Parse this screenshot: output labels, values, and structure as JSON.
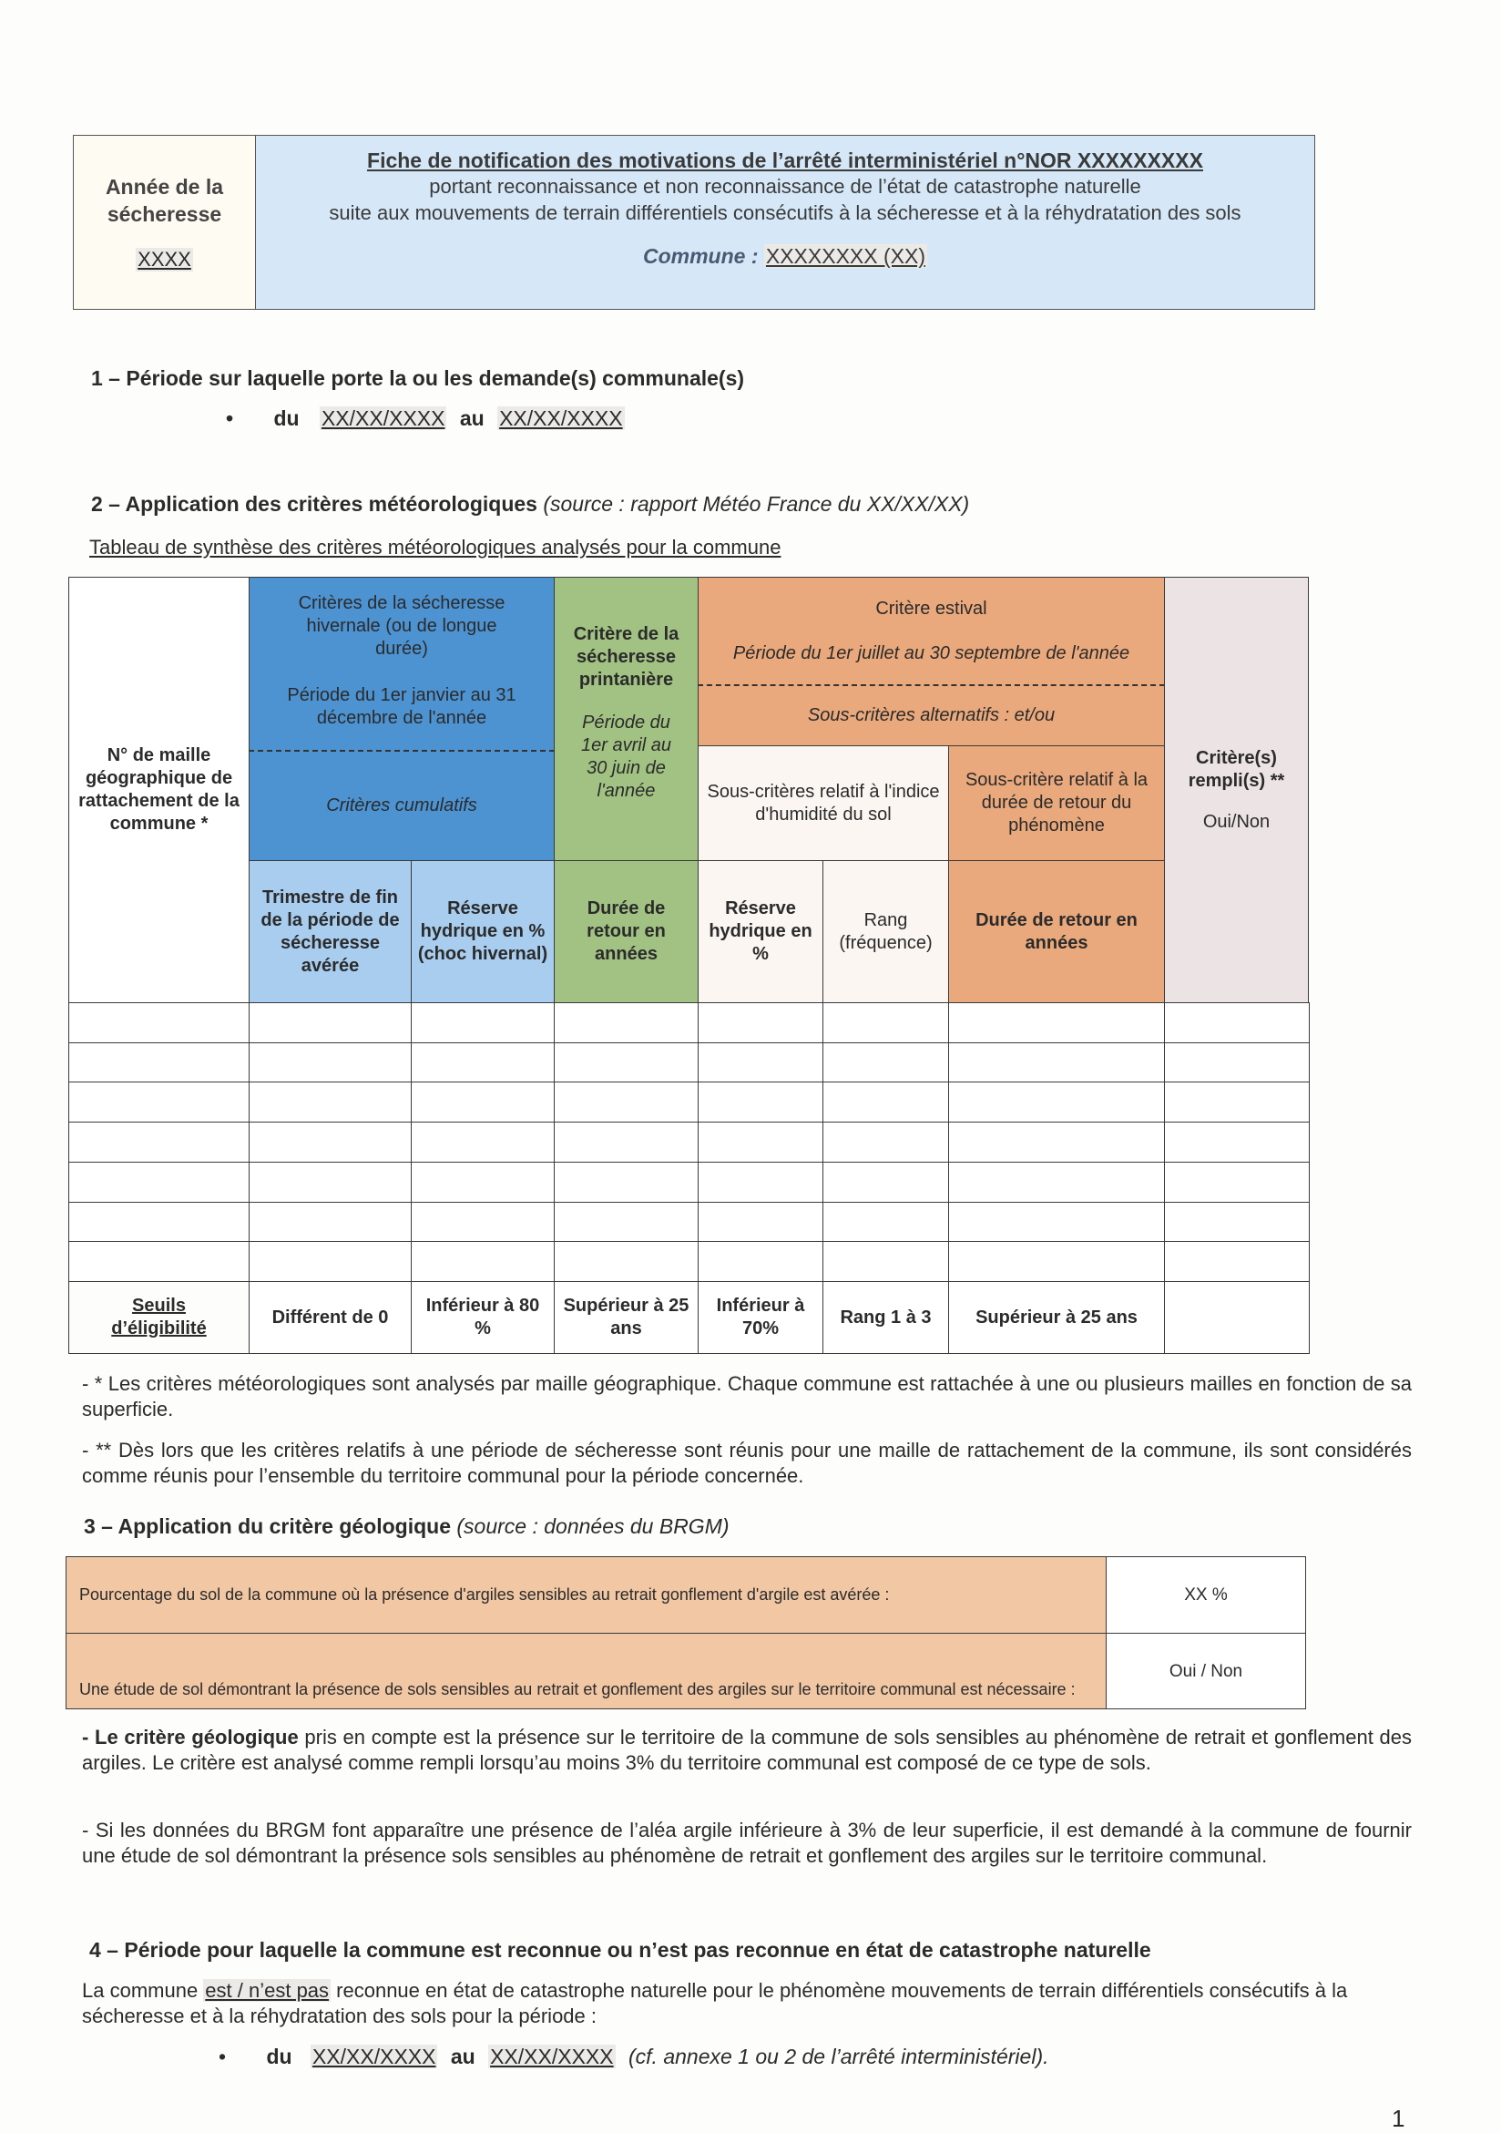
{
  "header": {
    "year_label": "Année de la sécheresse",
    "year_value": "XXXX",
    "title": "Fiche de notification des motivations de l’arrêté interministériel n°NOR XXXXXXXXX",
    "subtitle_1": "portant reconnaissance et non reconnaissance de l’état de catastrophe naturelle",
    "subtitle_2": "suite aux mouvements de terrain différentiels consécutifs à la sécheresse et à la réhydratation des sols",
    "commune_label": "Commune :",
    "commune_value": "XXXXXXXX (XX)"
  },
  "section1": {
    "heading": "1 – Période sur laquelle porte la ou les demande(s) communale(s)",
    "du": "du",
    "date_from": "XX/XX/XXXX",
    "au": "au",
    "date_to": "XX/XX/XXXX"
  },
  "section2": {
    "heading": "2 – Application des critères météorologiques",
    "source": "(source : rapport Météo France du XX/XX/XX)",
    "table_title": "Tableau de synthèse des critères météorologiques analysés pour la commune",
    "table": {
      "maille": "N° de maille géographique de rattachement de la commune *",
      "hivernale_title": "Critères de la sécheresse hivernale (ou de longue durée)",
      "hivernale_period": "Période du 1er janvier au 31 décembre de l'année",
      "hivernale_cumul": "Critères cumulatifs",
      "printaniere_title": "Critère de la sécheresse printanière",
      "printaniere_period": "Période du 1er avril au 30 juin de l'année",
      "estival_title": "Critère estival",
      "estival_period": "Période du 1er juillet au 30 septembre de l'année",
      "estival_alt": "Sous-critères alternatifs : et/ou",
      "sub_humidite": "Sous-critères relatif à l'indice d'humidité du sol",
      "sub_duree": "Sous-critère relatif à la durée de retour du phénomène",
      "rempli": "Critère(s) rempli(s) **",
      "rempli_values": "Oui/Non",
      "col_trimestre": "Trimestre de fin de la période de sécheresse avérée",
      "col_reserve_hiv": "Réserve hydrique en % (choc hivernal)",
      "col_duree_print": "Durée de retour en années",
      "col_reserve_est": "Réserve hydrique en %",
      "col_rang": "Rang (fréquence)",
      "col_duree_est": "Durée de retour en années",
      "seuils_label": "Seuils d’éligibilité",
      "seuils": [
        "Différent de 0",
        "Inférieur à 80 %",
        "Supérieur à 25 ans",
        "Inférieur à 70%",
        "Rang 1 à 3",
        "Supérieur à 25 ans",
        ""
      ]
    },
    "note_1": "- * Les critères météorologiques sont analysés par maille géographique. Chaque commune est rattachée à une ou plusieurs mailles en fonction de sa superficie.",
    "note_2": "- ** Dès lors que les critères relatifs à une période de sécheresse sont réunis pour une maille de rattachement de la commune, ils sont considérés comme réunis pour l’ensemble du territoire communal pour la période concernée."
  },
  "section3": {
    "heading": "3 – Application du critère géologique",
    "source": "(source : données du BRGM)",
    "row1_label": "Pourcentage du sol de la commune où la présence d'argiles sensibles au retrait gonflement d'argile est avérée :",
    "row1_value": "XX %",
    "row2_label": "Une étude de sol démontrant la présence de sols sensibles au retrait et gonflement des argiles sur le territoire communal est nécessaire :",
    "row2_value": "Oui / Non",
    "para1_bold": "- Le critère géologique",
    "para1_rest": " pris en compte est la présence sur le territoire de la commune de sols sensibles au phénomène de retrait et gonflement des argiles. Le critère est analysé comme rempli lorsqu’au moins 3% du territoire communal est composé de ce type de sols.",
    "para2": "- Si les données du BRGM font apparaître une présence de l’aléa argile inférieure à 3% de leur superficie, il est demandé à la commune de fournir une étude de sol démontrant la présence sols sensibles au phénomène de retrait et gonflement des argiles sur le territoire communal."
  },
  "section4": {
    "heading": "4 – Période pour laquelle la commune est reconnue ou n’est pas reconnue en état de catastrophe naturelle",
    "para_start": "La commune ",
    "status": "est / n’est pas",
    "para_end": " reconnue en état de catastrophe naturelle pour le phénomène mouvements de terrain différentiels consécutifs à la sécheresse et à la réhydratation des sols pour la période :",
    "du": "du",
    "date_from": "XX/XX/XXXX",
    "au": "au",
    "date_to": "XX/XX/XXXX",
    "ref": "(cf. annexe 1 ou 2 de l’arrêté interministériel)."
  },
  "page_number": "1"
}
